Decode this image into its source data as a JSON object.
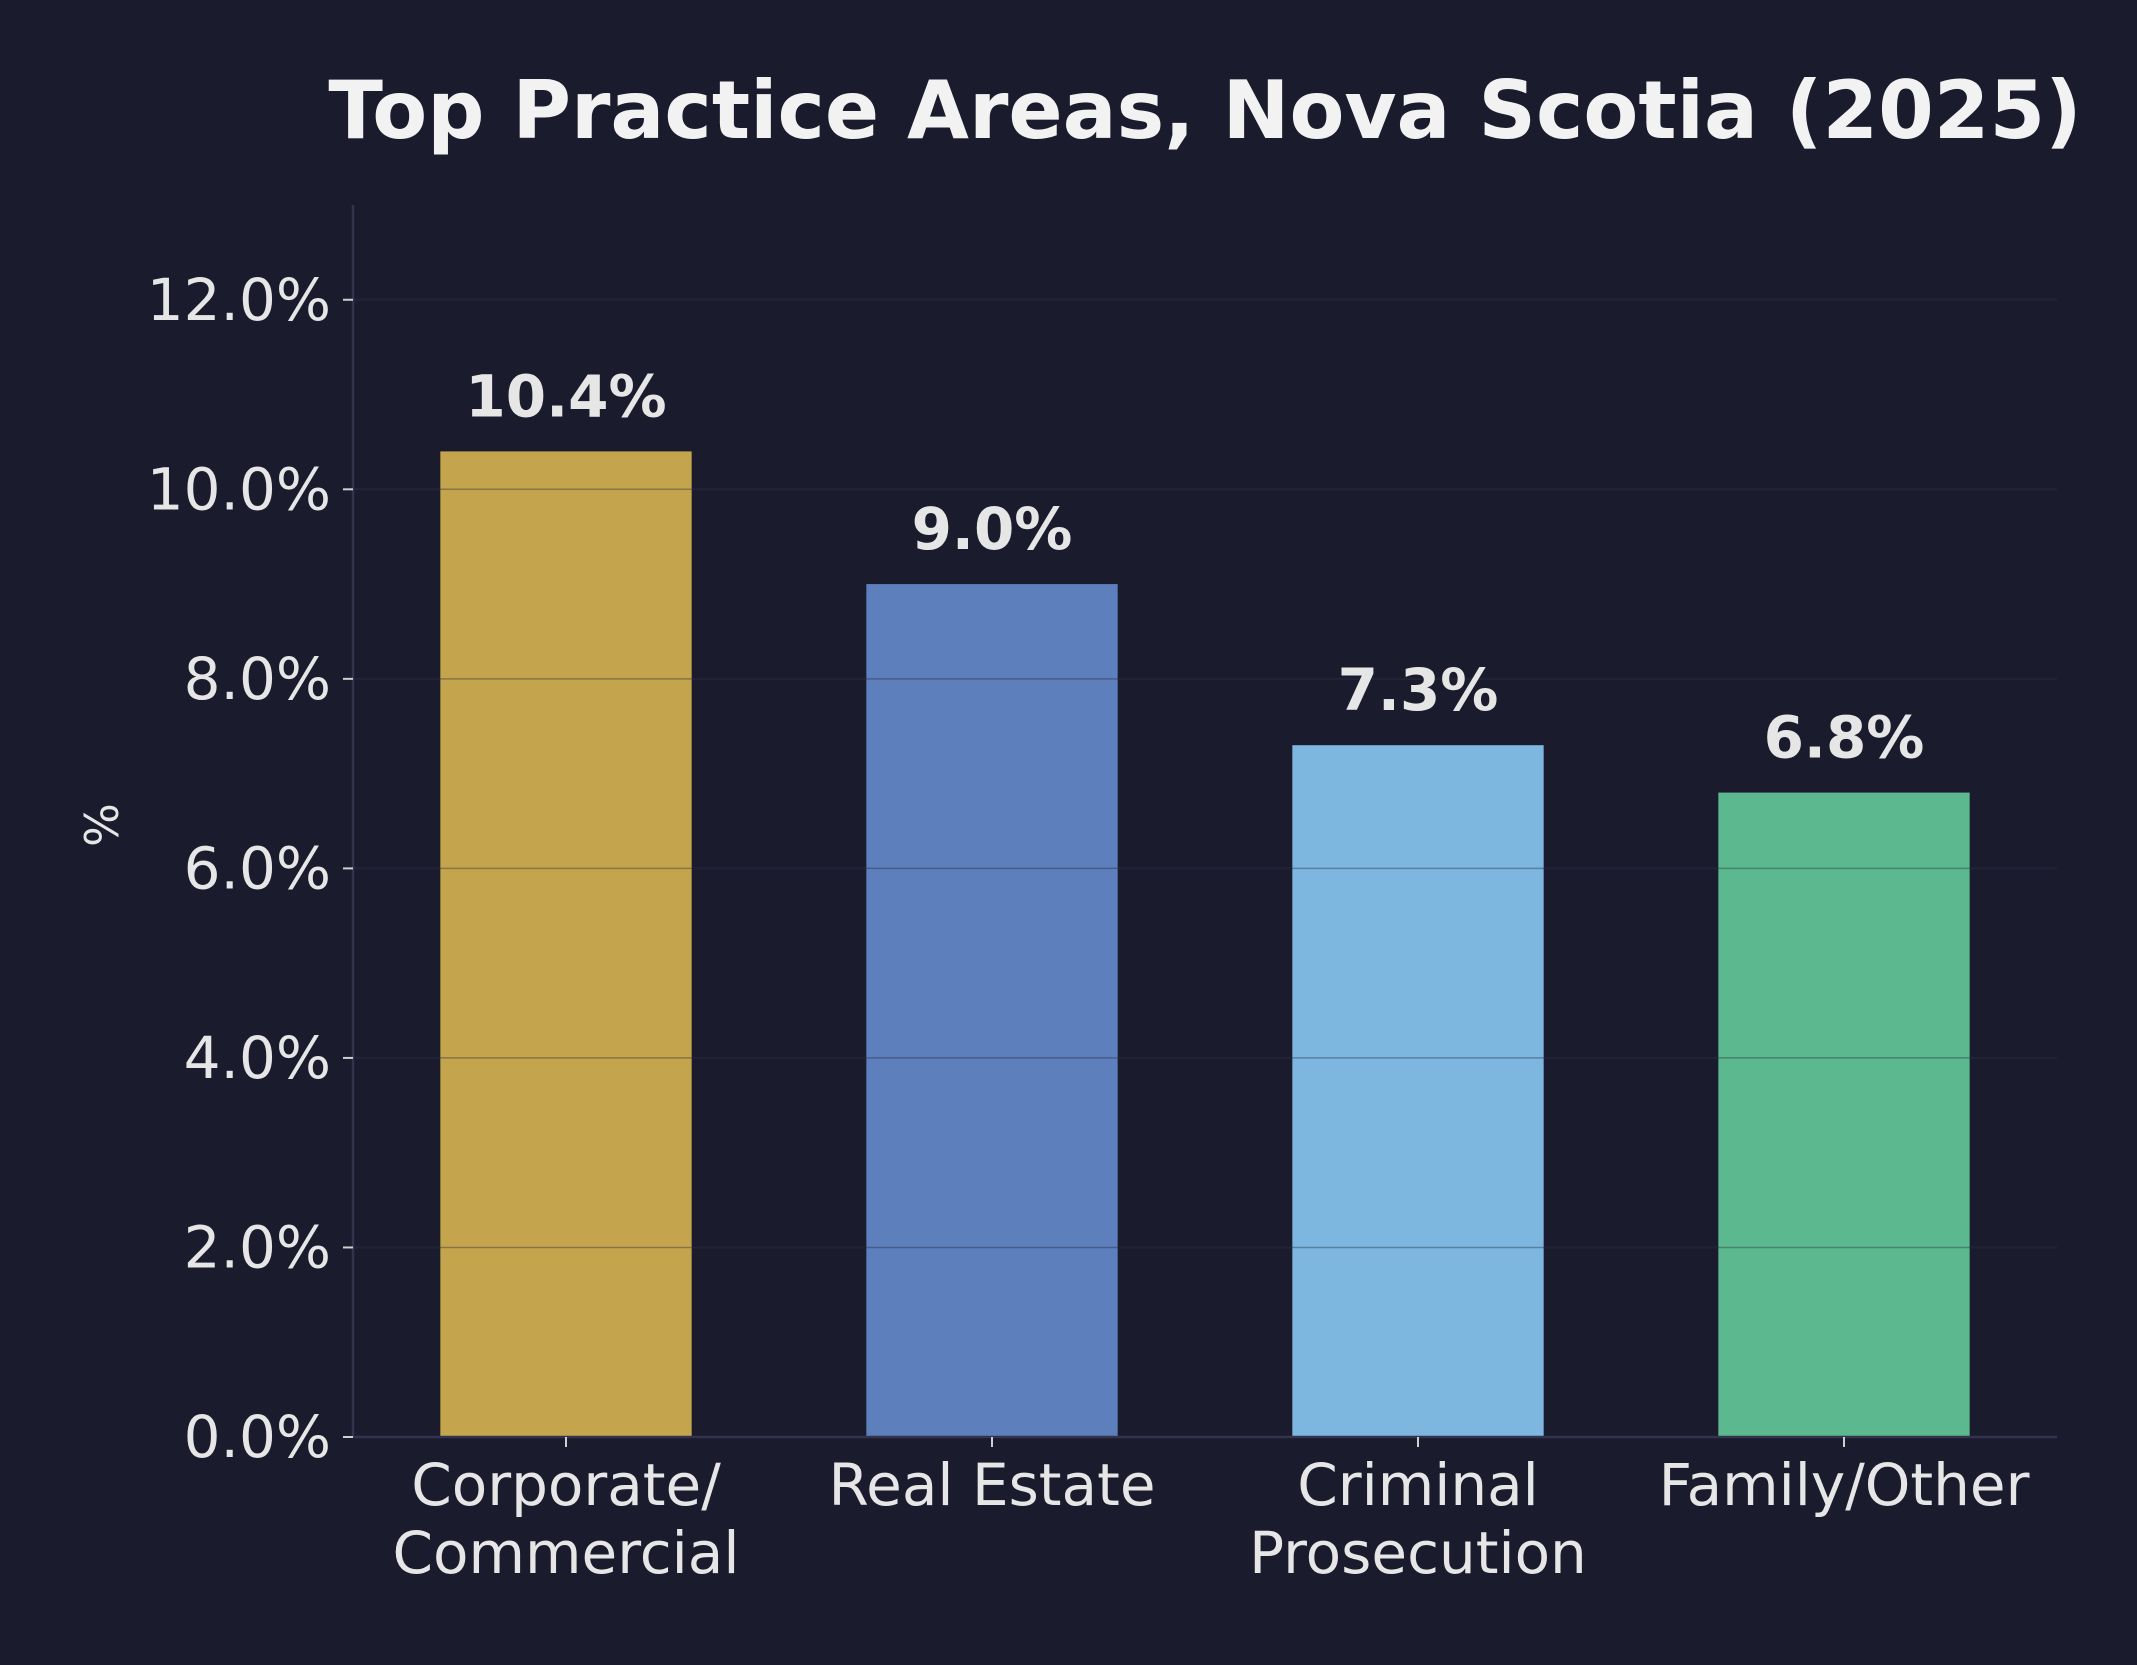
{
  "chart_data": {
    "type": "bar",
    "title": "Top Practice Areas, Nova Scotia (2025)",
    "xlabel": "",
    "ylabel": "%",
    "categories": [
      [
        "Corporate/",
        "Commercial"
      ],
      [
        "Real Estate"
      ],
      [
        "Criminal",
        "Prosecution"
      ],
      [
        "Family/Other"
      ]
    ],
    "values": [
      10.4,
      9.0,
      7.3,
      6.8
    ],
    "value_labels": [
      "10.4%",
      "9.0%",
      "7.3%",
      "6.8%"
    ],
    "colors": [
      "#c4a54e",
      "#5d80bc",
      "#7db6df",
      "#5cb88f"
    ],
    "ylim": [
      0,
      13
    ],
    "yticks": [
      0,
      2,
      4,
      6,
      8,
      10,
      12
    ],
    "ytick_labels": [
      "0.0%",
      "2.0%",
      "4.0%",
      "6.0%",
      "8.0%",
      "10.0%",
      "12.0%"
    ],
    "grid": true,
    "legend": "none",
    "theme": {
      "background": "#1b1b2e",
      "text": "#e6e6e6",
      "title": "#f2f2f2",
      "axis": "#33334d",
      "grid": "#26263a"
    }
  }
}
